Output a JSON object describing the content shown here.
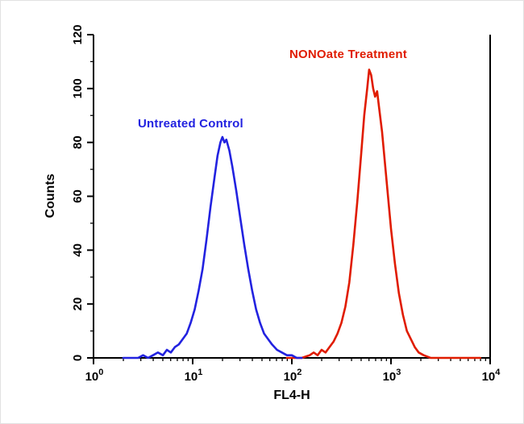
{
  "figure": {
    "background": "#ffffff",
    "axis_color": "#000000"
  },
  "chart_data": {
    "type": "line",
    "chart_kind": "flow_cytometry_histogram",
    "title": "",
    "xlabel": "FL4-H",
    "ylabel": "Counts",
    "x_scale": "log10",
    "x_log_range": [
      0,
      4
    ],
    "x_tick_labels": [
      {
        "mantissa": "10",
        "exponent": "0"
      },
      {
        "mantissa": "10",
        "exponent": "1"
      },
      {
        "mantissa": "10",
        "exponent": "2"
      },
      {
        "mantissa": "10",
        "exponent": "3"
      },
      {
        "mantissa": "10",
        "exponent": "4"
      }
    ],
    "ylim": [
      0,
      120
    ],
    "y_ticks": [
      0,
      20,
      40,
      60,
      80,
      100,
      120
    ],
    "grid": false,
    "legend_position": "annotations-on-plot",
    "series": [
      {
        "label": "Untreated Control",
        "color": "#2222e0",
        "points_logx_counts": [
          [
            0.3,
            0
          ],
          [
            0.45,
            0
          ],
          [
            0.5,
            1
          ],
          [
            0.55,
            0
          ],
          [
            0.6,
            1
          ],
          [
            0.65,
            2
          ],
          [
            0.7,
            1
          ],
          [
            0.74,
            3
          ],
          [
            0.78,
            2
          ],
          [
            0.82,
            4
          ],
          [
            0.86,
            5
          ],
          [
            0.9,
            7
          ],
          [
            0.94,
            9
          ],
          [
            0.98,
            13
          ],
          [
            1.02,
            18
          ],
          [
            1.06,
            25
          ],
          [
            1.1,
            33
          ],
          [
            1.14,
            44
          ],
          [
            1.18,
            56
          ],
          [
            1.22,
            67
          ],
          [
            1.25,
            75
          ],
          [
            1.28,
            80
          ],
          [
            1.3,
            82
          ],
          [
            1.32,
            80
          ],
          [
            1.34,
            81
          ],
          [
            1.37,
            77
          ],
          [
            1.4,
            71
          ],
          [
            1.44,
            62
          ],
          [
            1.48,
            52
          ],
          [
            1.52,
            42
          ],
          [
            1.56,
            33
          ],
          [
            1.6,
            25
          ],
          [
            1.64,
            18
          ],
          [
            1.68,
            13
          ],
          [
            1.72,
            9
          ],
          [
            1.76,
            7
          ],
          [
            1.8,
            5
          ],
          [
            1.85,
            3
          ],
          [
            1.9,
            2
          ],
          [
            1.95,
            1
          ],
          [
            2.0,
            1
          ],
          [
            2.05,
            0
          ],
          [
            2.1,
            0
          ]
        ]
      },
      {
        "label": "NONOate Treatment",
        "color": "#e01c00",
        "points_logx_counts": [
          [
            1.95,
            0
          ],
          [
            2.1,
            0
          ],
          [
            2.18,
            1
          ],
          [
            2.22,
            2
          ],
          [
            2.26,
            1
          ],
          [
            2.3,
            3
          ],
          [
            2.34,
            2
          ],
          [
            2.38,
            4
          ],
          [
            2.42,
            6
          ],
          [
            2.46,
            9
          ],
          [
            2.5,
            13
          ],
          [
            2.54,
            19
          ],
          [
            2.58,
            28
          ],
          [
            2.62,
            42
          ],
          [
            2.66,
            58
          ],
          [
            2.7,
            76
          ],
          [
            2.73,
            90
          ],
          [
            2.76,
            100
          ],
          [
            2.78,
            107
          ],
          [
            2.8,
            105
          ],
          [
            2.82,
            100
          ],
          [
            2.84,
            97
          ],
          [
            2.86,
            99
          ],
          [
            2.88,
            93
          ],
          [
            2.91,
            84
          ],
          [
            2.94,
            72
          ],
          [
            2.97,
            60
          ],
          [
            3.0,
            48
          ],
          [
            3.04,
            35
          ],
          [
            3.08,
            24
          ],
          [
            3.12,
            16
          ],
          [
            3.16,
            10
          ],
          [
            3.2,
            7
          ],
          [
            3.24,
            4
          ],
          [
            3.28,
            2
          ],
          [
            3.33,
            1
          ],
          [
            3.4,
            0
          ],
          [
            3.6,
            0
          ],
          [
            3.9,
            0
          ]
        ]
      }
    ]
  }
}
